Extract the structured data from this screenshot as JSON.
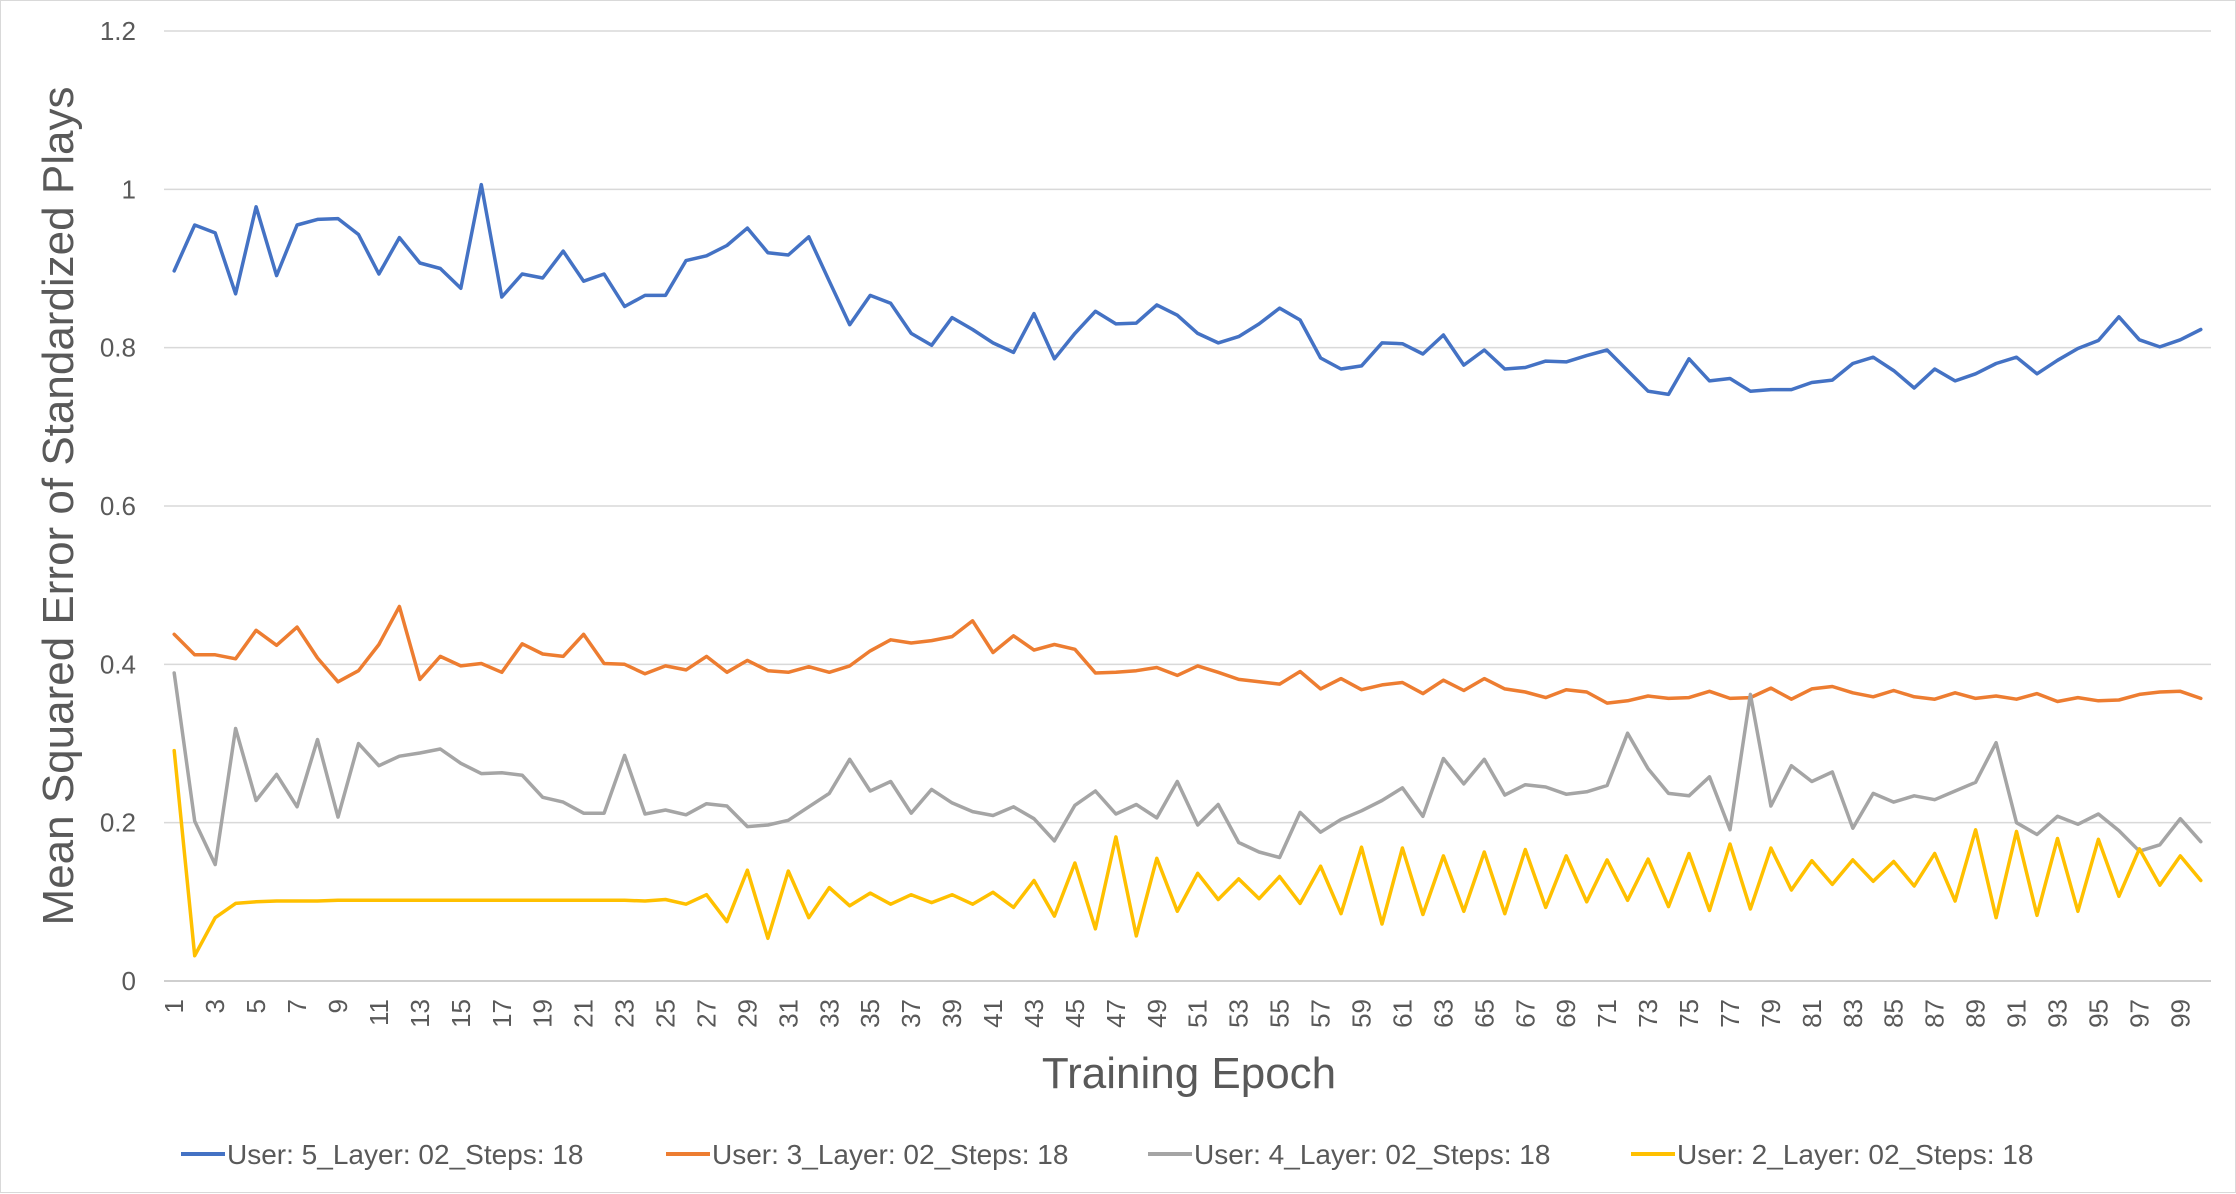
{
  "chart_data": {
    "type": "line",
    "xlabel": "Training Epoch",
    "ylabel": "Mean Squared Error of Standardized Plays",
    "ylim": [
      0,
      1.2
    ],
    "yticks": [
      "0",
      "0.2",
      "0.4",
      "0.6",
      "0.8",
      "1",
      "1.2"
    ],
    "xticks": [
      "1",
      "3",
      "5",
      "7",
      "9",
      "11",
      "13",
      "15",
      "17",
      "19",
      "21",
      "23",
      "25",
      "27",
      "29",
      "31",
      "33",
      "35",
      "37",
      "39",
      "41",
      "43",
      "45",
      "47",
      "49",
      "51",
      "53",
      "55",
      "57",
      "59",
      "61",
      "63",
      "65",
      "67",
      "69",
      "71",
      "73",
      "75",
      "77",
      "79",
      "81",
      "83",
      "85",
      "87",
      "89",
      "91",
      "93",
      "95",
      "97",
      "99"
    ],
    "grid": true,
    "legend_position": "bottom",
    "x": [
      1,
      2,
      3,
      4,
      5,
      6,
      7,
      8,
      9,
      10,
      11,
      12,
      13,
      14,
      15,
      16,
      17,
      18,
      19,
      20,
      21,
      22,
      23,
      24,
      25,
      26,
      27,
      28,
      29,
      30,
      31,
      32,
      33,
      34,
      35,
      36,
      37,
      38,
      39,
      40,
      41,
      42,
      43,
      44,
      45,
      46,
      47,
      48,
      49,
      50,
      51,
      52,
      53,
      54,
      55,
      56,
      57,
      58,
      59,
      60,
      61,
      62,
      63,
      64,
      65,
      66,
      67,
      68,
      69,
      70,
      71,
      72,
      73,
      74,
      75,
      76,
      77,
      78,
      79,
      80,
      81,
      82,
      83,
      84,
      85,
      86,
      87,
      88,
      89,
      90,
      91,
      92,
      93,
      94,
      95,
      96,
      97,
      98,
      99,
      100
    ],
    "series": [
      {
        "name": "User: 5_Layer: 02_Steps: 18",
        "color": "#4472c4",
        "values": [
          0.897,
          0.955,
          0.945,
          0.868,
          0.978,
          0.891,
          0.955,
          0.962,
          0.963,
          0.943,
          0.893,
          0.939,
          0.907,
          0.9,
          0.875,
          1.006,
          0.864,
          0.893,
          0.888,
          0.922,
          0.884,
          0.893,
          0.852,
          0.866,
          0.866,
          0.91,
          0.916,
          0.929,
          0.951,
          0.92,
          0.917,
          0.94,
          0.884,
          0.829,
          0.866,
          0.856,
          0.818,
          0.803,
          0.838,
          0.823,
          0.806,
          0.794,
          0.843,
          0.786,
          0.818,
          0.846,
          0.83,
          0.831,
          0.854,
          0.841,
          0.818,
          0.806,
          0.814,
          0.83,
          0.85,
          0.835,
          0.787,
          0.773,
          0.777,
          0.806,
          0.805,
          0.792,
          0.816,
          0.778,
          0.797,
          0.773,
          0.775,
          0.783,
          0.782,
          0.79,
          0.797,
          0.771,
          0.745,
          0.741,
          0.786,
          0.758,
          0.761,
          0.745,
          0.747,
          0.747,
          0.756,
          0.759,
          0.78,
          0.788,
          0.771,
          0.749,
          0.773,
          0.758,
          0.767,
          0.78,
          0.788,
          0.767,
          0.784,
          0.799,
          0.809,
          0.839,
          0.81,
          0.801,
          0.81,
          0.823
        ]
      },
      {
        "name": "User: 3_Layer: 02_Steps: 18",
        "color": "#ed7d31",
        "values": [
          0.438,
          0.412,
          0.412,
          0.407,
          0.443,
          0.424,
          0.447,
          0.408,
          0.378,
          0.392,
          0.425,
          0.473,
          0.381,
          0.41,
          0.398,
          0.401,
          0.39,
          0.426,
          0.413,
          0.41,
          0.438,
          0.401,
          0.4,
          0.388,
          0.398,
          0.393,
          0.41,
          0.39,
          0.405,
          0.392,
          0.39,
          0.397,
          0.39,
          0.398,
          0.417,
          0.431,
          0.427,
          0.43,
          0.435,
          0.455,
          0.415,
          0.436,
          0.418,
          0.425,
          0.419,
          0.389,
          0.39,
          0.392,
          0.396,
          0.386,
          0.398,
          0.39,
          0.381,
          0.378,
          0.375,
          0.391,
          0.369,
          0.382,
          0.368,
          0.374,
          0.377,
          0.363,
          0.38,
          0.367,
          0.382,
          0.369,
          0.365,
          0.358,
          0.368,
          0.365,
          0.351,
          0.354,
          0.36,
          0.357,
          0.358,
          0.366,
          0.357,
          0.358,
          0.37,
          0.356,
          0.369,
          0.372,
          0.364,
          0.359,
          0.367,
          0.359,
          0.356,
          0.364,
          0.357,
          0.36,
          0.356,
          0.363,
          0.353,
          0.358,
          0.354,
          0.355,
          0.362,
          0.365,
          0.366,
          0.357
        ]
      },
      {
        "name": "User: 4_Layer: 02_Steps: 18",
        "color": "#a5a5a5",
        "values": [
          0.389,
          0.202,
          0.147,
          0.319,
          0.228,
          0.261,
          0.22,
          0.305,
          0.207,
          0.3,
          0.272,
          0.284,
          0.288,
          0.293,
          0.275,
          0.262,
          0.263,
          0.26,
          0.232,
          0.226,
          0.212,
          0.212,
          0.285,
          0.211,
          0.216,
          0.21,
          0.224,
          0.221,
          0.195,
          0.197,
          0.203,
          0.22,
          0.237,
          0.28,
          0.24,
          0.252,
          0.212,
          0.242,
          0.225,
          0.214,
          0.209,
          0.22,
          0.205,
          0.177,
          0.222,
          0.24,
          0.211,
          0.223,
          0.206,
          0.252,
          0.197,
          0.223,
          0.175,
          0.163,
          0.156,
          0.213,
          0.188,
          0.204,
          0.215,
          0.228,
          0.244,
          0.208,
          0.281,
          0.249,
          0.28,
          0.235,
          0.248,
          0.245,
          0.236,
          0.239,
          0.247,
          0.313,
          0.268,
          0.237,
          0.234,
          0.258,
          0.191,
          0.362,
          0.221,
          0.272,
          0.252,
          0.264,
          0.193,
          0.237,
          0.226,
          0.234,
          0.229,
          0.24,
          0.251,
          0.301,
          0.2,
          0.185,
          0.208,
          0.198,
          0.211,
          0.19,
          0.164,
          0.172,
          0.205,
          0.176
        ]
      },
      {
        "name": "User: 2_Layer: 02_Steps: 18",
        "color": "#ffc000",
        "values": [
          0.291,
          0.032,
          0.08,
          0.098,
          0.1,
          0.101,
          0.101,
          0.101,
          0.102,
          0.102,
          0.102,
          0.102,
          0.102,
          0.102,
          0.102,
          0.102,
          0.102,
          0.102,
          0.102,
          0.102,
          0.102,
          0.102,
          0.102,
          0.101,
          0.103,
          0.097,
          0.109,
          0.075,
          0.14,
          0.054,
          0.139,
          0.08,
          0.118,
          0.095,
          0.111,
          0.097,
          0.109,
          0.099,
          0.109,
          0.097,
          0.112,
          0.093,
          0.127,
          0.082,
          0.149,
          0.066,
          0.182,
          0.057,
          0.155,
          0.088,
          0.136,
          0.103,
          0.129,
          0.104,
          0.132,
          0.098,
          0.145,
          0.085,
          0.169,
          0.072,
          0.168,
          0.084,
          0.158,
          0.088,
          0.163,
          0.085,
          0.166,
          0.093,
          0.158,
          0.1,
          0.153,
          0.102,
          0.154,
          0.094,
          0.161,
          0.089,
          0.173,
          0.091,
          0.168,
          0.115,
          0.152,
          0.122,
          0.153,
          0.126,
          0.151,
          0.12,
          0.161,
          0.101,
          0.191,
          0.08,
          0.189,
          0.083,
          0.18,
          0.088,
          0.179,
          0.107,
          0.167,
          0.121,
          0.158,
          0.127
        ]
      }
    ]
  }
}
